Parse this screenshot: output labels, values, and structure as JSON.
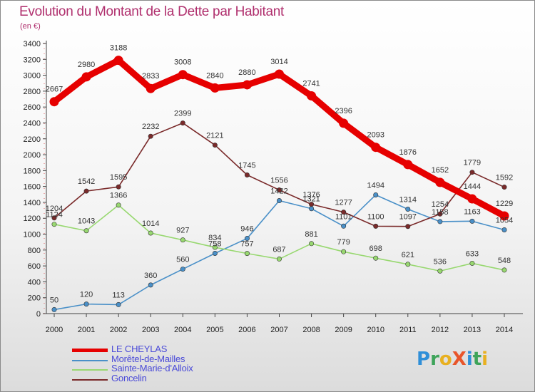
{
  "title": "Evolution du Montant de la Dette par Habitant",
  "unit": "(en €)",
  "logo": {
    "text": "ProXiti",
    "letters": [
      {
        "char": "P",
        "color": "#2f8fd8"
      },
      {
        "char": "r",
        "color": "#3ea45a"
      },
      {
        "char": "o",
        "color": "#e8b020"
      },
      {
        "char": "X",
        "color": "#e8552a"
      },
      {
        "char": "i",
        "color": "#2f8fd8"
      },
      {
        "char": "t",
        "color": "#3ea45a"
      },
      {
        "char": "i",
        "color": "#e8b020"
      }
    ]
  },
  "chart_data": {
    "type": "line",
    "title": "Evolution du Montant de la Dette par Habitant",
    "ylabel": "(en €)",
    "xlabel": "",
    "x": [
      "2000",
      "2001",
      "2002",
      "2003",
      "2004",
      "2005",
      "2006",
      "2007",
      "2008",
      "2009",
      "2010",
      "2011",
      "2012",
      "2013",
      "2014"
    ],
    "ylim": [
      0,
      3400
    ],
    "yticks": [
      0,
      200,
      400,
      600,
      800,
      1000,
      1200,
      1400,
      1600,
      1800,
      2000,
      2200,
      2400,
      2600,
      2800,
      3000,
      3200,
      3400
    ],
    "grid": false,
    "legend_position": "bottom-left",
    "series": [
      {
        "name": "LE CHEYLAS",
        "color": "#e60000",
        "values": [
          2667,
          2980,
          3188,
          2833,
          3008,
          2840,
          2880,
          3014,
          2741,
          2396,
          2093,
          1876,
          1652,
          1444,
          1229
        ]
      },
      {
        "name": "Morêtel-de-Mailles",
        "color": "#4a90c8",
        "values": [
          50,
          120,
          113,
          360,
          560,
          758,
          946,
          1422,
          1321,
          1101,
          1494,
          1314,
          1158,
          1163,
          1054
        ]
      },
      {
        "name": "Sainte-Marie-d'Alloix",
        "color": "#98d870",
        "values": [
          1124,
          1043,
          1366,
          1014,
          927,
          834,
          757,
          687,
          881,
          779,
          698,
          621,
          536,
          633,
          548
        ]
      },
      {
        "name": "Goncelin",
        "color": "#7a2a2a",
        "values": [
          1204,
          1542,
          1595,
          2232,
          2399,
          2121,
          1745,
          1556,
          1376,
          1277,
          1100,
          1097,
          1254,
          1779,
          1592
        ]
      }
    ]
  }
}
